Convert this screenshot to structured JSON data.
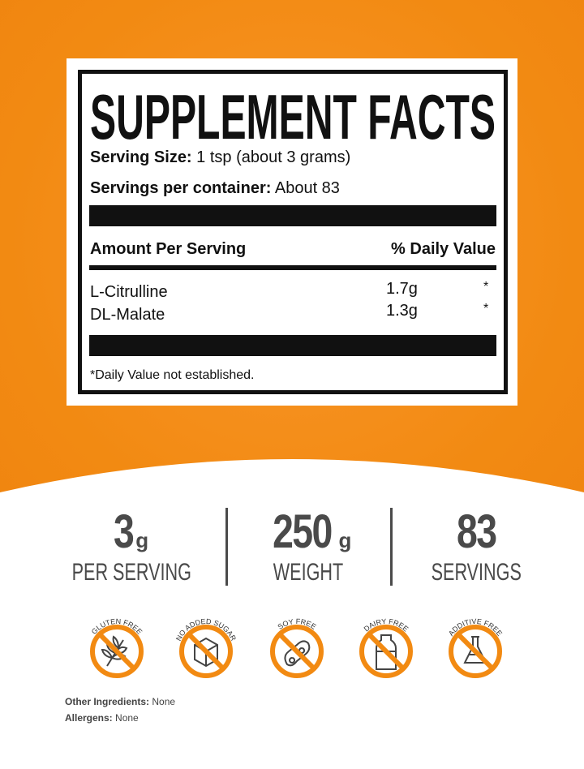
{
  "facts": {
    "title": "SUPPLEMENT FACTS",
    "serving_size_label": "Serving Size:",
    "serving_size_value": "1 tsp (about 3 grams)",
    "servings_label": "Servings per container:",
    "servings_value": "About 83",
    "amount_header": "Amount Per Serving",
    "dv_header": "% Daily Value",
    "ingredients": [
      {
        "name": "L-Citrulline",
        "amount": "1.7g",
        "dv": "*"
      },
      {
        "name": "DL-Malate",
        "amount": "1.3g",
        "dv": "*"
      }
    ],
    "footnote": "*Daily Value not established."
  },
  "stats": [
    {
      "value": "3",
      "unit": "g",
      "caption": "PER SERVING"
    },
    {
      "value": "250",
      "unit": "g",
      "caption": "WEIGHT"
    },
    {
      "value": "83",
      "unit": "",
      "caption": "SERVINGS"
    }
  ],
  "badges": [
    {
      "label": "GLUTEN FREE",
      "icon": "wheat-icon"
    },
    {
      "label": "NO ADDED SUGAR",
      "icon": "sugar-cube-icon"
    },
    {
      "label": "SOY FREE",
      "icon": "soybean-icon"
    },
    {
      "label": "DAIRY FREE",
      "icon": "milk-bottle-icon"
    },
    {
      "label": "ADDITIVE FREE",
      "icon": "flask-icon"
    }
  ],
  "other_ingredients_label": "Other Ingredients:",
  "other_ingredients_value": "None",
  "allergens_label": "Allergens:",
  "allergens_value": "None",
  "colors": {
    "orange": "#F28A12",
    "text_dark": "#4A4A4A",
    "black": "#111111"
  }
}
